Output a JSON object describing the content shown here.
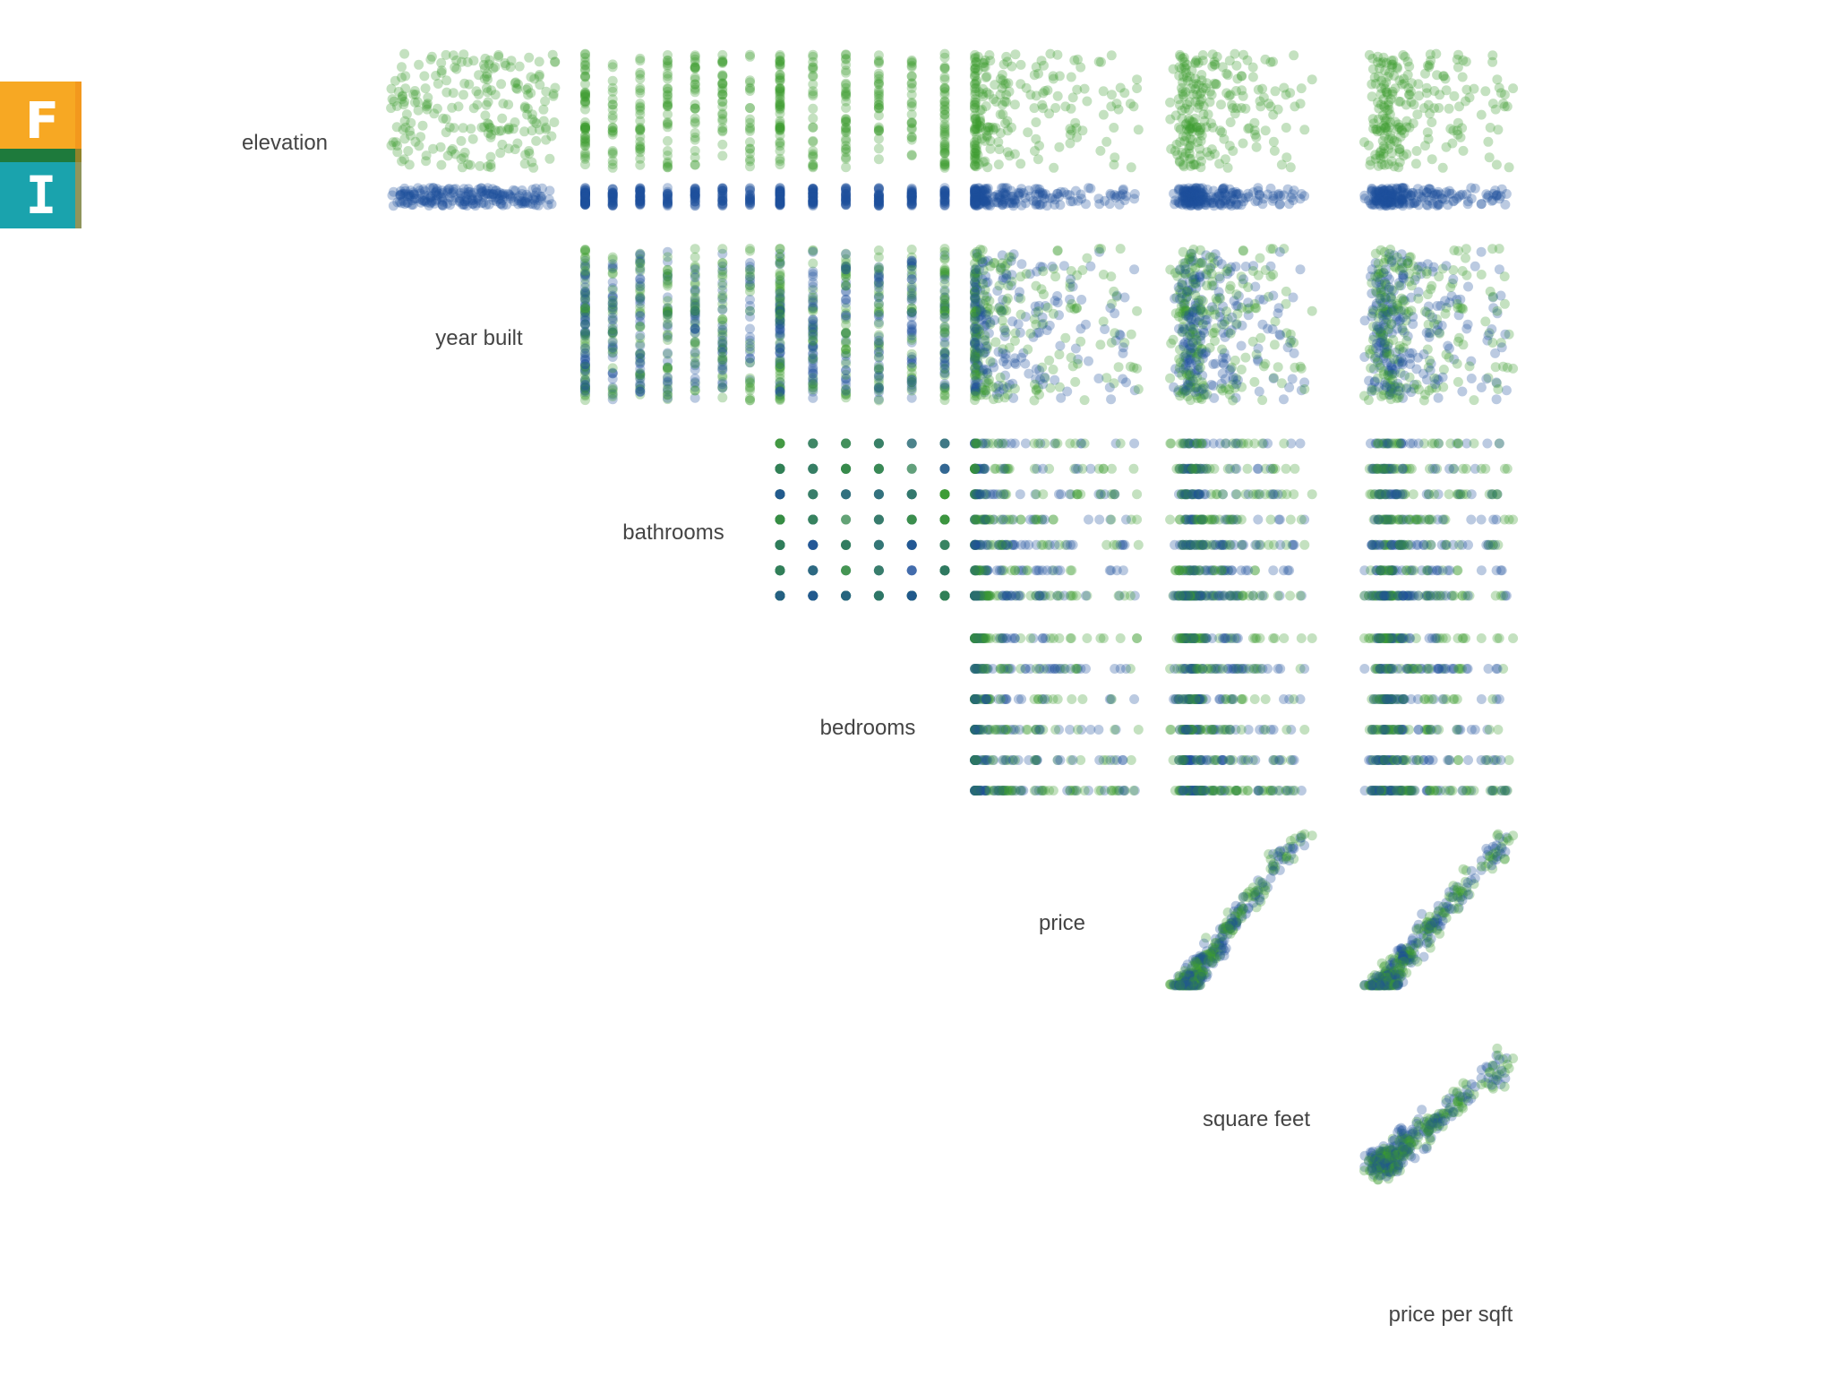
{
  "logo": {
    "letters": [
      "F",
      "I"
    ],
    "colors": {
      "top": "#f7a823",
      "band": "#1e7a3c",
      "bottom": "#1aa3ad",
      "edge": "#f08a1a"
    }
  },
  "chart_data": {
    "type": "scatter",
    "subtype": "scatterplot-matrix (upper triangle)",
    "variables": [
      "elevation",
      "year built",
      "bathrooms",
      "bedrooms",
      "price",
      "square feet",
      "price per sqft"
    ],
    "series": [
      {
        "class": "blue",
        "color": "#1f4e9a"
      },
      {
        "class": "green",
        "color": "#3a9a2e"
      }
    ],
    "axis_ticks_shown": false,
    "grid": false,
    "legend": "none",
    "point_opacity": 0.3
  }
}
